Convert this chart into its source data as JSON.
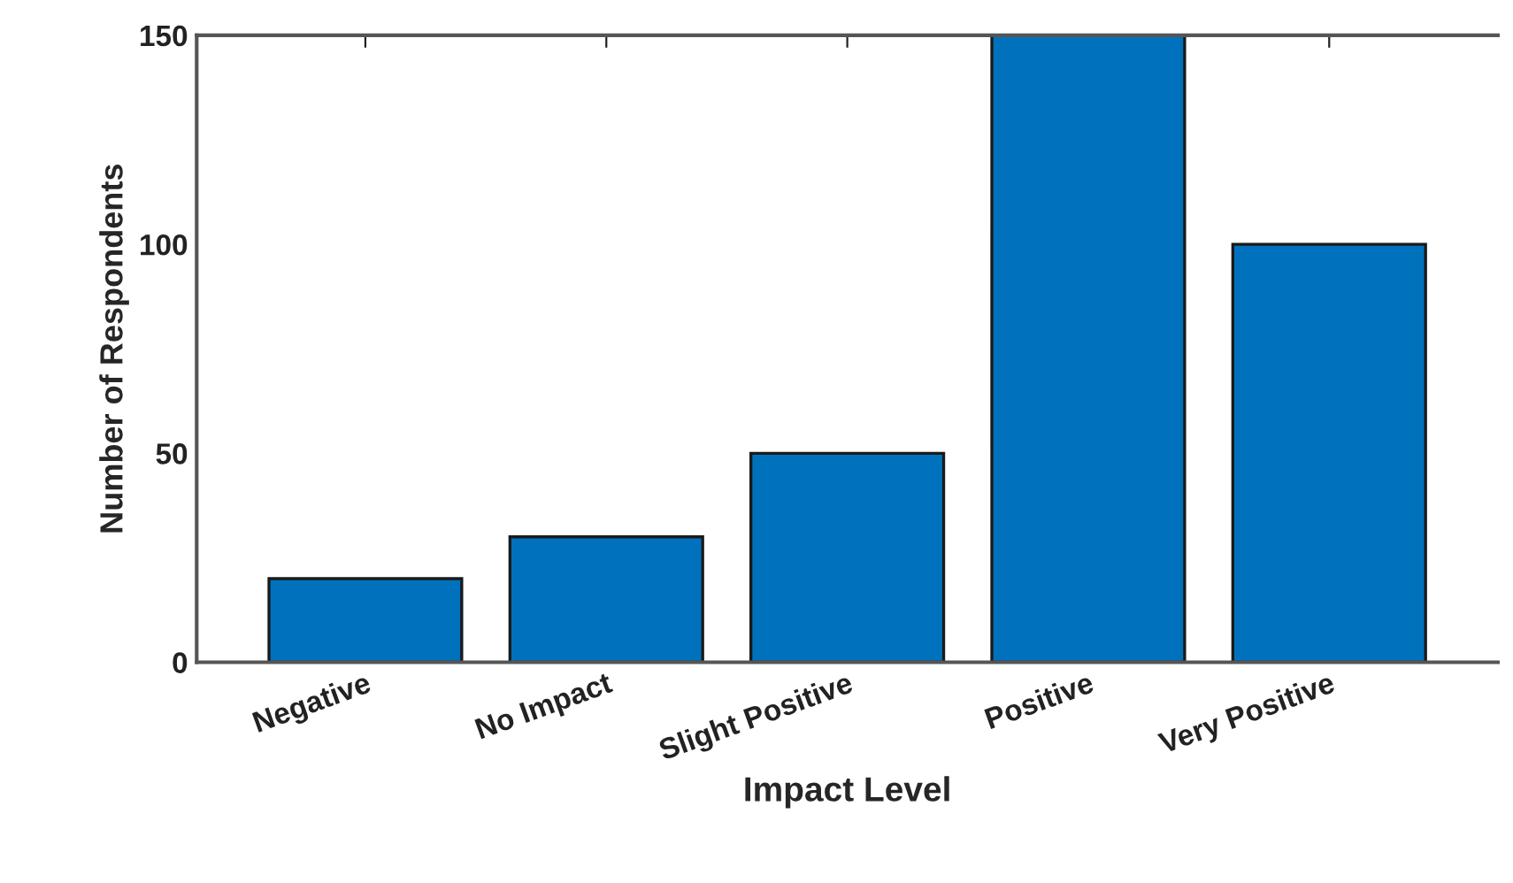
{
  "chart_data": {
    "type": "bar",
    "xlabel": "Impact Level",
    "ylabel": "Number of Respondents",
    "categories": [
      "Negative",
      "No Impact",
      "Slight Positive",
      "Positive",
      "Very Positive"
    ],
    "values": [
      20,
      30,
      50,
      150,
      100
    ],
    "color": "#0072bd",
    "ylim": [
      0,
      150
    ],
    "yticks": [
      0,
      50,
      100,
      150
    ],
    "grid": false,
    "legend": false
  }
}
